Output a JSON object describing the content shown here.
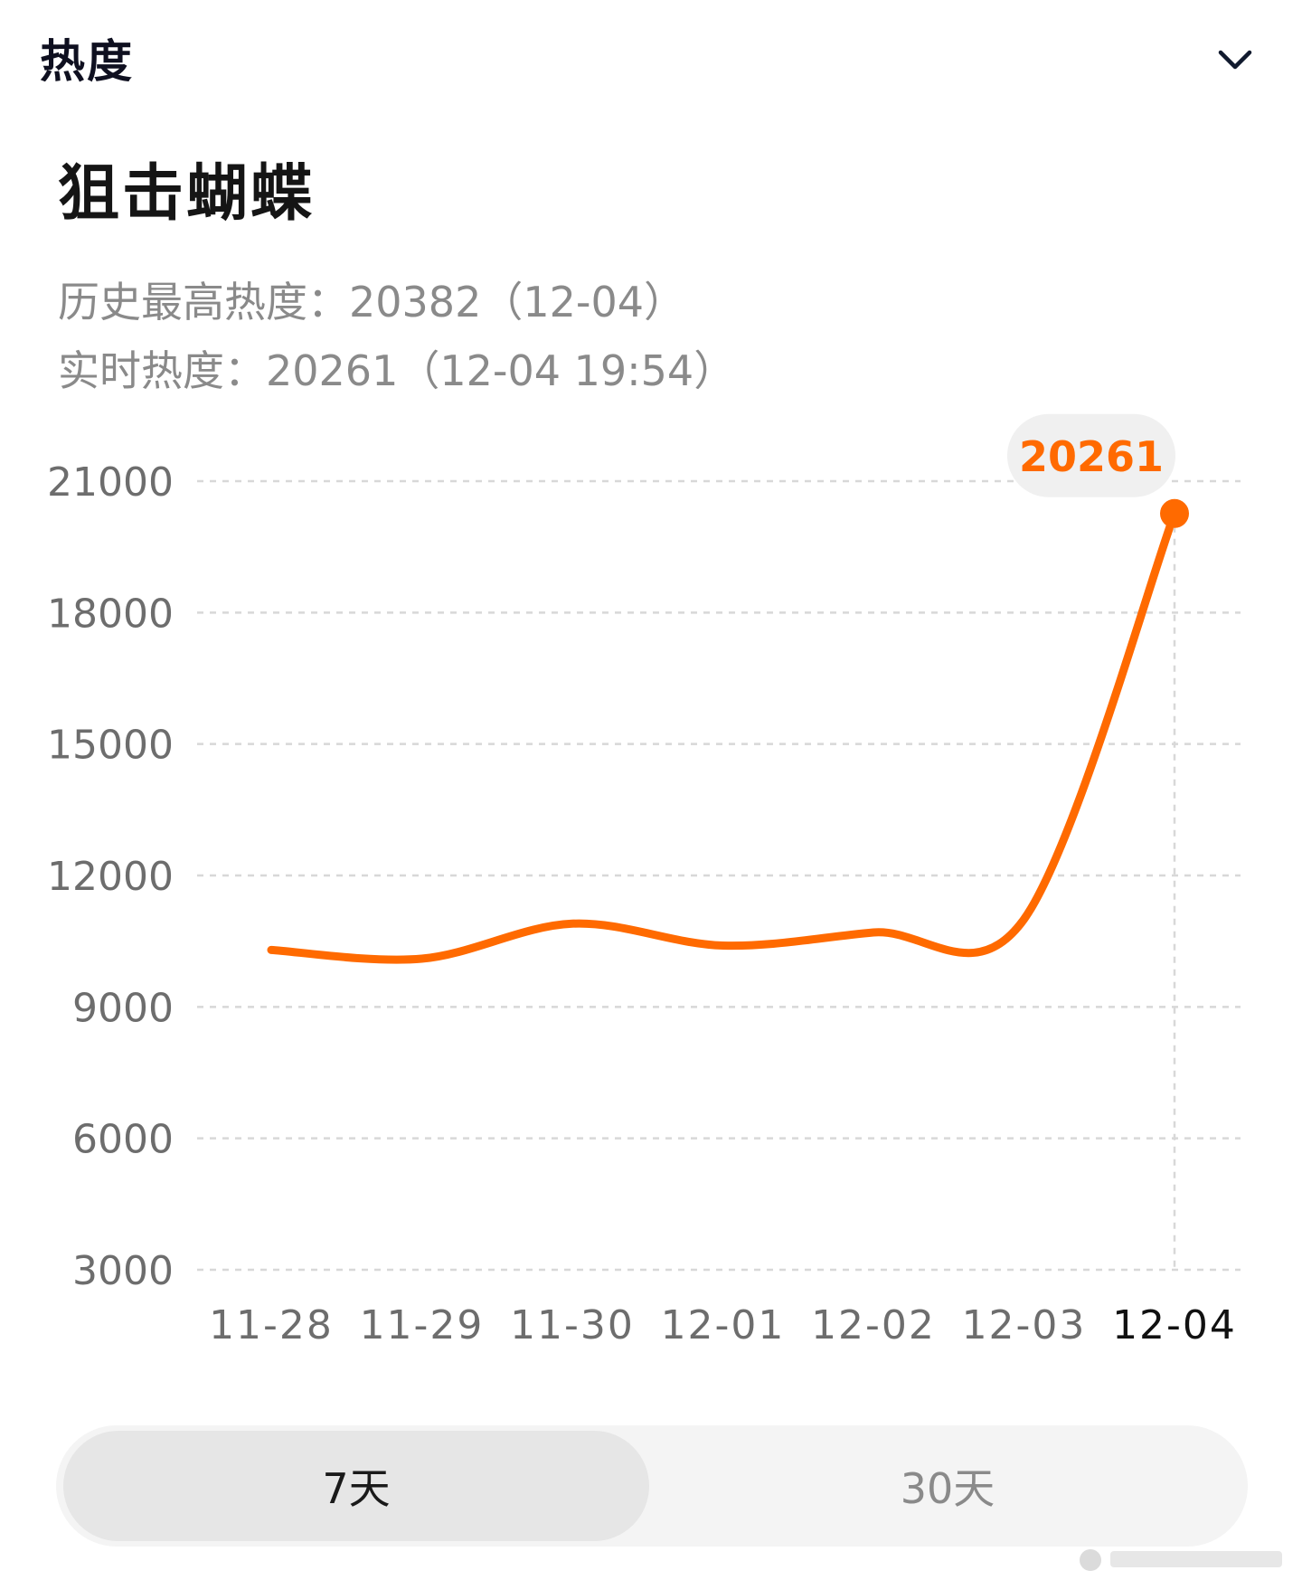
{
  "header": {
    "section_title": "热度",
    "collapse_icon": "chevron-down-icon"
  },
  "topic": {
    "title": "狙击蝴蝶"
  },
  "stats": {
    "peak_label": "历史最高热度：",
    "peak_value": "20382",
    "peak_date": "（12-04）",
    "realtime_label": "实时热度：",
    "realtime_value": "20261",
    "realtime_time": "（12-04 19:54）"
  },
  "chart_data": {
    "type": "line",
    "title": "",
    "xlabel": "",
    "ylabel": "",
    "categories": [
      "11-28",
      "11-29",
      "11-30",
      "12-01",
      "12-02",
      "12-03",
      "12-04"
    ],
    "series": [
      {
        "values": [
          10300,
          10100,
          10900,
          10400,
          10700,
          11000,
          20261
        ]
      }
    ],
    "ylim": [
      3000,
      21000
    ],
    "yticks": [
      21000,
      18000,
      15000,
      12000,
      9000,
      6000,
      3000
    ],
    "highlight": {
      "index": 6,
      "label": "20261"
    },
    "selected_category": "12-04",
    "grid": true,
    "colors": {
      "line": "#ff6a00",
      "highlight_text": "#ff6a00",
      "highlight_bg": "#f0f0f0",
      "grid": "#d8d8d8",
      "tick_text": "#6d6d6d",
      "selected_tick_text": "#111111"
    }
  },
  "range_tabs": {
    "items": [
      {
        "label": "7天",
        "active": true
      },
      {
        "label": "30天",
        "active": false
      }
    ]
  }
}
